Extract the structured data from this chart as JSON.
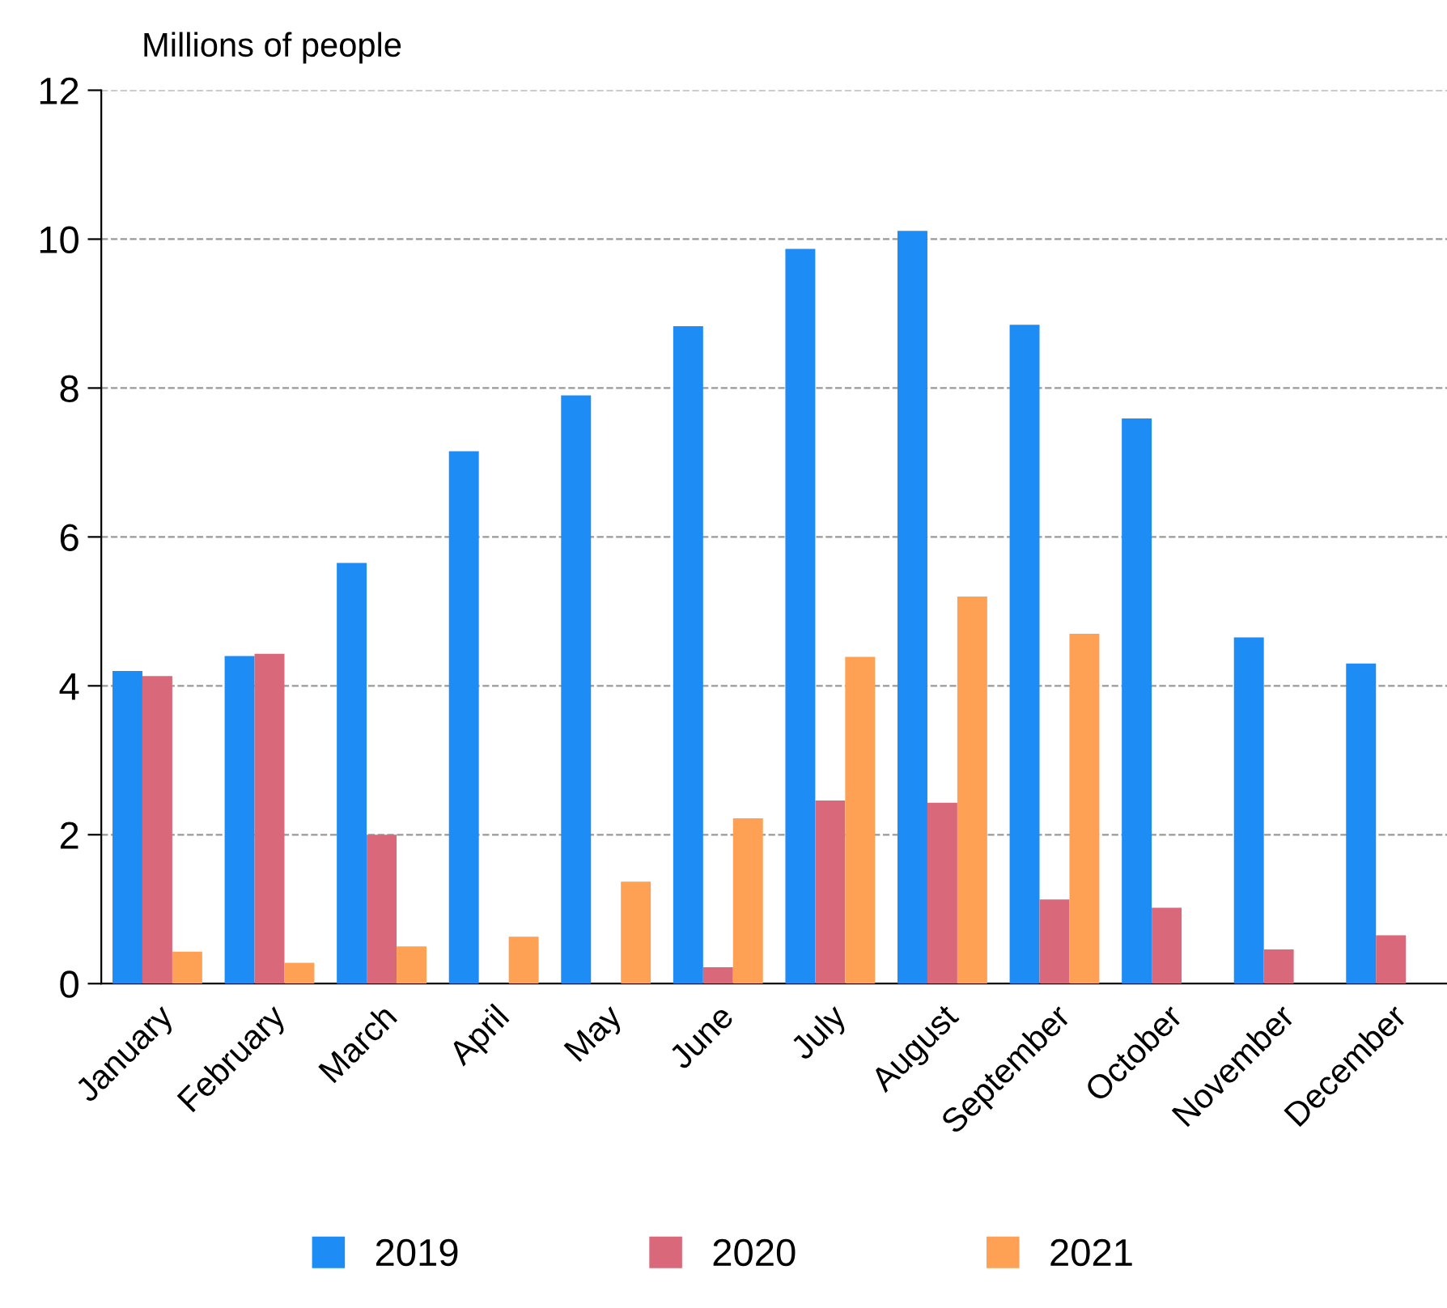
{
  "chart_data": {
    "type": "bar",
    "ylabel": "Millions of people",
    "categories": [
      "January",
      "February",
      "March",
      "April",
      "May",
      "June",
      "July",
      "August",
      "September",
      "October",
      "November",
      "December"
    ],
    "series": [
      {
        "name": "2019",
        "color": "#1e8cf5",
        "values": [
          4.2,
          4.4,
          5.65,
          7.15,
          7.9,
          8.83,
          9.87,
          10.11,
          8.85,
          7.59,
          4.65,
          4.3
        ]
      },
      {
        "name": "2020",
        "color": "#d9697a",
        "values": [
          4.13,
          4.43,
          2.0,
          null,
          null,
          0.22,
          2.46,
          2.43,
          1.13,
          1.02,
          0.46,
          0.65
        ]
      },
      {
        "name": "2021",
        "color": "#ffa155",
        "values": [
          0.43,
          0.28,
          0.5,
          0.63,
          1.37,
          2.22,
          4.39,
          5.2,
          4.7,
          null,
          null,
          null
        ]
      }
    ],
    "ylim": [
      0,
      12
    ],
    "yticks": [
      0,
      2,
      4,
      6,
      8,
      10,
      12
    ],
    "grid": "y",
    "legend": "bottom"
  }
}
